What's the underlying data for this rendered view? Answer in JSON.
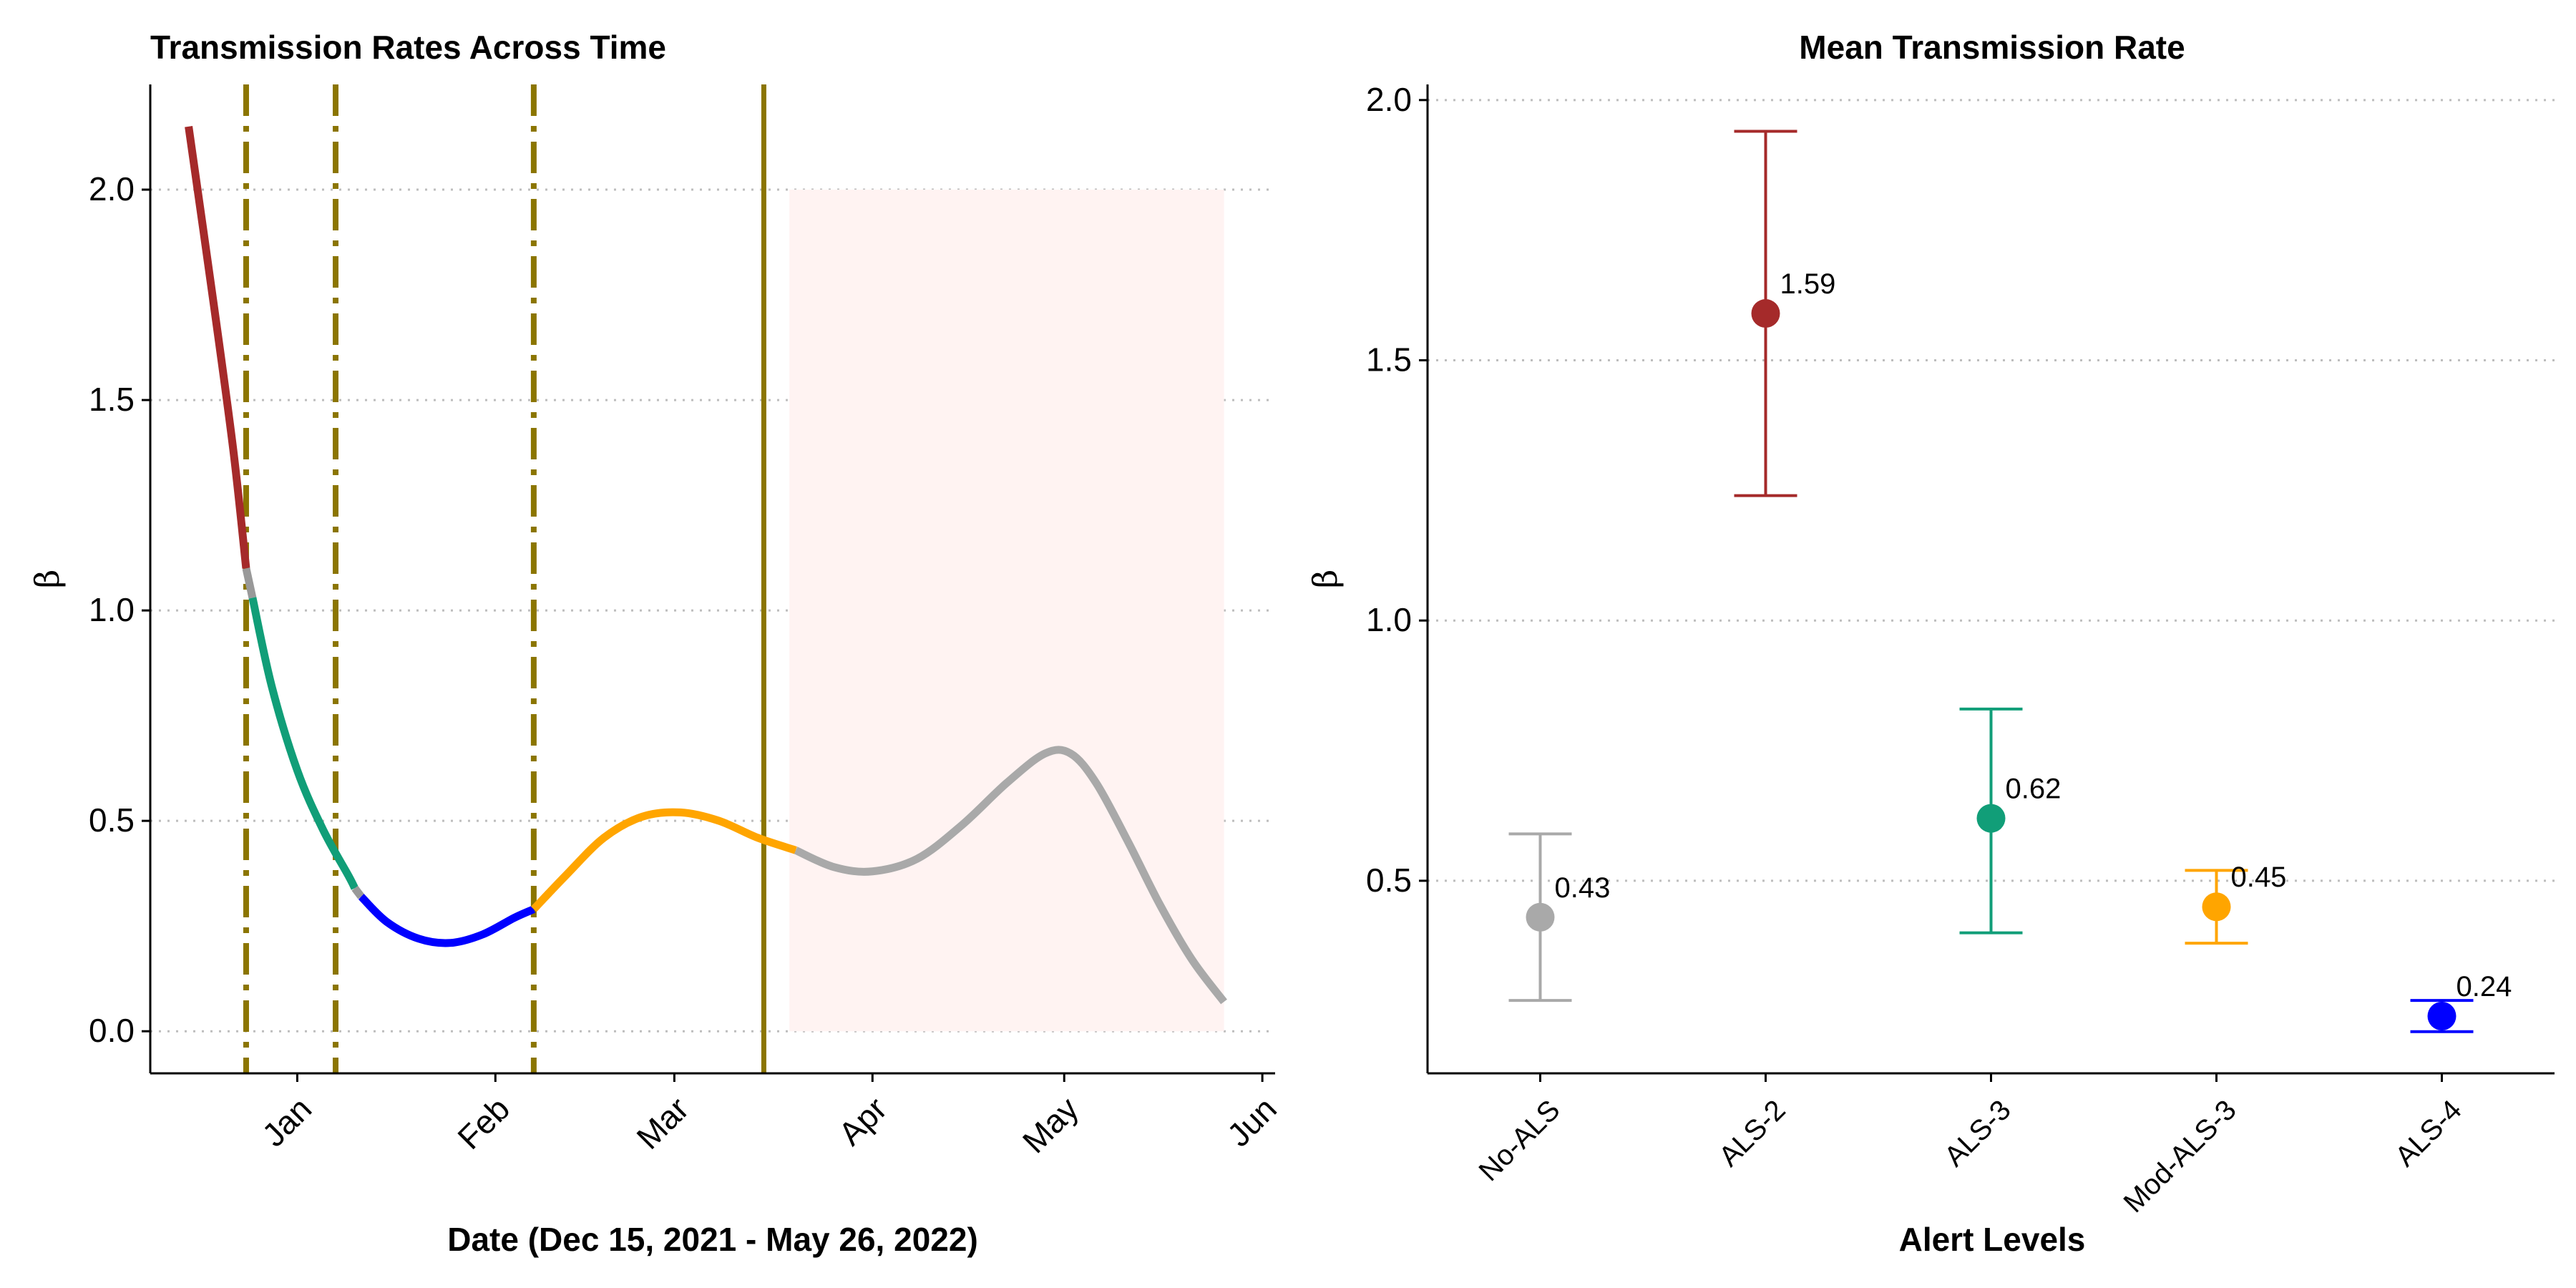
{
  "chart_data": [
    {
      "type": "line",
      "title": "Transmission Rates Across Time",
      "xlabel": "Date (Dec 15, 2021 - May 26, 2022)",
      "ylabel": "β",
      "xlim": [
        "2021-12-09",
        "2022-06-03"
      ],
      "ylim": [
        -0.1,
        2.25
      ],
      "x_ticks": [
        {
          "label": "Jan",
          "date": "2022-01-01"
        },
        {
          "label": "Feb",
          "date": "2022-02-01"
        },
        {
          "label": "Mar",
          "date": "2022-03-01"
        },
        {
          "label": "Apr",
          "date": "2022-04-01"
        },
        {
          "label": "May",
          "date": "2022-05-01"
        },
        {
          "label": "Jun",
          "date": "2022-06-01"
        }
      ],
      "y_ticks": [
        "0.0",
        "0.5",
        "1.0",
        "1.5",
        "2.0"
      ],
      "grid": "horizontal dotted",
      "series": [
        {
          "color": "#a52a2a",
          "points": [
            [
              "2021-12-15",
              2.15
            ],
            [
              "2021-12-19",
              1.72
            ],
            [
              "2021-12-22",
              1.38
            ],
            [
              "2021-12-24",
              1.1
            ]
          ]
        },
        {
          "color": "#999999",
          "points": [
            [
              "2021-12-24",
              1.1
            ],
            [
              "2021-12-25",
              1.03
            ]
          ]
        },
        {
          "color": "#119e78",
          "points": [
            [
              "2021-12-25",
              1.03
            ],
            [
              "2021-12-28",
              0.82
            ],
            [
              "2022-01-01",
              0.62
            ],
            [
              "2022-01-05",
              0.48
            ],
            [
              "2022-01-09",
              0.37
            ],
            [
              "2022-01-10",
              0.34
            ]
          ]
        },
        {
          "color": "#999999",
          "points": [
            [
              "2022-01-10",
              0.34
            ],
            [
              "2022-01-11",
              0.32
            ]
          ]
        },
        {
          "color": "#0000ff",
          "points": [
            [
              "2022-01-11",
              0.32
            ],
            [
              "2022-01-15",
              0.26
            ],
            [
              "2022-01-20",
              0.22
            ],
            [
              "2022-01-25",
              0.21
            ],
            [
              "2022-01-30",
              0.23
            ],
            [
              "2022-02-04",
              0.27
            ],
            [
              "2022-02-07",
              0.29
            ]
          ]
        },
        {
          "color": "#ffa500",
          "points": [
            [
              "2022-02-07",
              0.29
            ],
            [
              "2022-02-12",
              0.37
            ],
            [
              "2022-02-18",
              0.46
            ],
            [
              "2022-02-24",
              0.51
            ],
            [
              "2022-03-02",
              0.52
            ],
            [
              "2022-03-08",
              0.5
            ],
            [
              "2022-03-14",
              0.46
            ],
            [
              "2022-03-20",
              0.43
            ]
          ]
        },
        {
          "color": "#a9a9a9",
          "points": [
            [
              "2022-03-20",
              0.43
            ],
            [
              "2022-03-26",
              0.39
            ],
            [
              "2022-04-01",
              0.38
            ],
            [
              "2022-04-08",
              0.41
            ],
            [
              "2022-04-15",
              0.49
            ],
            [
              "2022-04-22",
              0.59
            ],
            [
              "2022-04-28",
              0.66
            ],
            [
              "2022-05-02",
              0.66
            ],
            [
              "2022-05-06",
              0.59
            ],
            [
              "2022-05-11",
              0.45
            ],
            [
              "2022-05-16",
              0.3
            ],
            [
              "2022-05-21",
              0.17
            ],
            [
              "2022-05-26",
              0.07
            ]
          ]
        }
      ],
      "vlines": [
        {
          "date": "2021-12-24",
          "style": "dotdash",
          "color": "#8b7500"
        },
        {
          "date": "2022-01-07",
          "style": "dotdash",
          "color": "#8b7500"
        },
        {
          "date": "2022-02-07",
          "style": "dotdash",
          "color": "#8b7500"
        },
        {
          "date": "2022-03-15",
          "style": "solid",
          "color": "#8b7500"
        }
      ],
      "shaded_region": {
        "x_start": "2022-03-19",
        "x_end": "2022-05-26",
        "y_start": 0.0,
        "y_end": 2.0,
        "color": "#fff3f2"
      }
    },
    {
      "type": "scatter",
      "title": "Mean Transmission Rate",
      "xlabel": "Alert Levels",
      "ylabel": "β",
      "ylim": [
        0.13,
        2.03
      ],
      "y_ticks": [
        "0.5",
        "1.0",
        "1.5",
        "2.0"
      ],
      "categories": [
        "No-ALS",
        "ALS-2",
        "ALS-3",
        "Mod-ALS-3",
        "ALS-4"
      ],
      "points": [
        {
          "category": "No-ALS",
          "value": 0.43,
          "label": "0.43",
          "lower": 0.27,
          "upper": 0.59,
          "color": "#a9a9a9"
        },
        {
          "category": "ALS-2",
          "value": 1.59,
          "label": "1.59",
          "lower": 1.24,
          "upper": 1.94,
          "color": "#a52a2a"
        },
        {
          "category": "ALS-3",
          "value": 0.62,
          "label": "0.62",
          "lower": 0.4,
          "upper": 0.83,
          "color": "#119e78"
        },
        {
          "category": "Mod-ALS-3",
          "value": 0.45,
          "label": "0.45",
          "lower": 0.38,
          "upper": 0.52,
          "color": "#ffa500"
        },
        {
          "category": "ALS-4",
          "value": 0.24,
          "label": "0.24",
          "lower": 0.21,
          "upper": 0.27,
          "color": "#0000ff"
        }
      ],
      "grid": "horizontal dotted"
    }
  ]
}
